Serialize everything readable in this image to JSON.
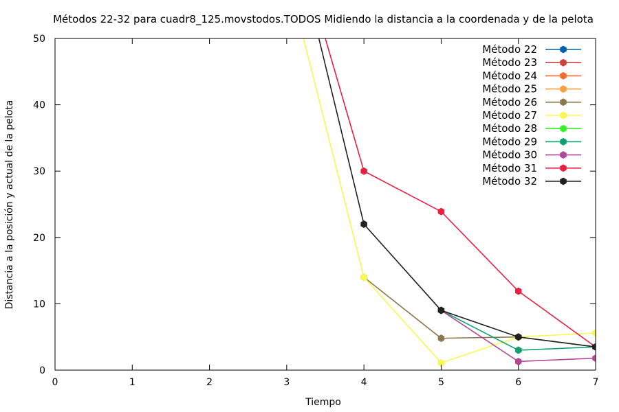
{
  "chart_data": {
    "type": "line",
    "title": "Métodos 22-32 para cuadr8_125.movstodos.TODOS Midiendo la distancia a la coordenada y de la pelota",
    "xlabel": "Tiempo",
    "ylabel": "Distancia a la posición y actual de la pelota",
    "xlim": [
      0,
      7
    ],
    "ylim": [
      0,
      50
    ],
    "xticks": [
      "0",
      "1",
      "2",
      "3",
      "4",
      "5",
      "6",
      "7"
    ],
    "yticks": [
      "0",
      "10",
      "20",
      "30",
      "40",
      "50"
    ],
    "grid": false,
    "legend_position": "top-right",
    "series": [
      {
        "name": "Método 22",
        "color": "#0060ad",
        "points": []
      },
      {
        "name": "Método 23",
        "color": "#c8443c",
        "points": []
      },
      {
        "name": "Método 24",
        "color": "#f06c30",
        "points": []
      },
      {
        "name": "Método 25",
        "color": "#f8a040",
        "points": []
      },
      {
        "name": "Método 26",
        "color": "#8c7850",
        "points": [
          [
            4,
            14
          ],
          [
            5,
            4.8
          ],
          [
            6,
            5
          ],
          [
            7,
            3.5
          ]
        ]
      },
      {
        "name": "Método 27",
        "color": "#f8f850",
        "points": [
          [
            3,
            60
          ],
          [
            4,
            14
          ],
          [
            5,
            1.1
          ],
          [
            6,
            5
          ],
          [
            7,
            5.6
          ]
        ]
      },
      {
        "name": "Método 28",
        "color": "#38f028",
        "points": []
      },
      {
        "name": "Método 29",
        "color": "#10a070",
        "points": [
          [
            5,
            9
          ],
          [
            6,
            3
          ],
          [
            7,
            3.5
          ]
        ]
      },
      {
        "name": "Método 30",
        "color": "#b04898",
        "points": [
          [
            5,
            9
          ],
          [
            6,
            1.3
          ],
          [
            7,
            1.8
          ]
        ]
      },
      {
        "name": "Método 31",
        "color": "#e82040",
        "points": [
          [
            3,
            70
          ],
          [
            4,
            30
          ],
          [
            5,
            23.9
          ],
          [
            6,
            11.9
          ],
          [
            7,
            3.5
          ]
        ]
      },
      {
        "name": "Método 32",
        "color": "#202020",
        "points": [
          [
            3,
            70
          ],
          [
            4,
            22
          ],
          [
            5,
            9
          ],
          [
            6,
            5
          ],
          [
            7,
            3.5
          ]
        ]
      }
    ]
  }
}
